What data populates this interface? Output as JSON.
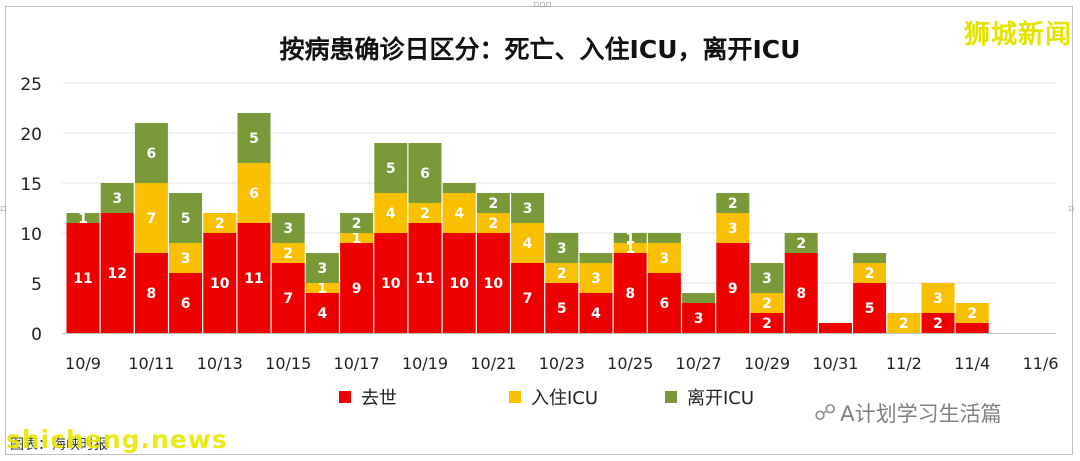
{
  "title": "按病患确诊日区分：死亡、入住ICU，离开ICU",
  "brand": "狮城新闻",
  "watermark_text": "A计划学习生活篇",
  "watermark_icon": "wechat-icon",
  "source_text": "图表：海峡时报",
  "site_text": "shicheng.news",
  "colors": {
    "death": "#ee0000",
    "icu_in": "#f8c000",
    "icu_out": "#7a9a3a",
    "grid": "#e6e6e6"
  },
  "legend": [
    {
      "label": "去世",
      "color": "#ee0000"
    },
    {
      "label": "入住ICU",
      "color": "#f8c000"
    },
    {
      "label": "离开ICU",
      "color": "#7a9a3a"
    }
  ],
  "chart_data": {
    "type": "bar",
    "stacked": true,
    "title": "按病患确诊日区分：死亡、入住ICU，离开ICU",
    "categories": [
      "10/9",
      "10/10",
      "10/11",
      "10/12",
      "10/13",
      "10/14",
      "10/15",
      "10/16",
      "10/17",
      "10/18",
      "10/19",
      "10/20",
      "10/21",
      "10/22",
      "10/23",
      "10/24",
      "10/25",
      "10/26",
      "10/27",
      "10/28",
      "10/29",
      "10/30",
      "10/31",
      "11/1",
      "11/2",
      "11/3",
      "11/4"
    ],
    "x_tick_labels": [
      "10/9",
      "10/11",
      "10/13",
      "10/15",
      "10/17",
      "10/19",
      "10/21",
      "10/23",
      "10/25",
      "10/27",
      "10/29",
      "10/31",
      "11/2",
      "11/4",
      "11/6"
    ],
    "series": [
      {
        "name": "去世",
        "color": "#ee0000",
        "values": [
          11,
          12,
          8,
          6,
          10,
          11,
          7,
          4,
          9,
          10,
          11,
          10,
          10,
          7,
          5,
          4,
          8,
          6,
          3,
          9,
          2,
          8,
          1,
          5,
          0,
          2,
          1
        ]
      },
      {
        "name": "入住ICU",
        "color": "#f8c000",
        "values": [
          0,
          0,
          7,
          3,
          2,
          6,
          2,
          1,
          1,
          4,
          2,
          4,
          2,
          4,
          2,
          3,
          1,
          3,
          0,
          3,
          2,
          0,
          0,
          2,
          2,
          3,
          2
        ]
      },
      {
        "name": "离开ICU",
        "color": "#7a9a3a",
        "values": [
          1,
          3,
          6,
          5,
          0,
          5,
          3,
          3,
          2,
          5,
          6,
          1,
          2,
          3,
          3,
          1,
          1,
          1,
          1,
          2,
          3,
          2,
          0,
          1,
          0,
          0,
          0
        ]
      }
    ],
    "data_labels": [
      [
        "11",
        "12",
        "8",
        "6",
        "10",
        "11",
        "7",
        "4",
        "9",
        "10",
        "11",
        "10",
        "10",
        "7",
        "5",
        "4",
        "8",
        "6",
        "3",
        "9",
        "2",
        "8",
        "",
        "5",
        "",
        "2",
        ""
      ],
      [
        "",
        "",
        "7",
        "3",
        "2",
        "6",
        "2",
        "1",
        "1",
        "4",
        "2",
        "4",
        "2",
        "4",
        "2",
        "3",
        "1",
        "3",
        "",
        "3",
        "2",
        "",
        "",
        "2",
        "2",
        "3",
        "2"
      ],
      [
        "1",
        "3",
        "6",
        "5",
        "",
        "5",
        "3",
        "3",
        "2",
        "5",
        "6",
        "",
        "2",
        "3",
        "3",
        "",
        "1",
        "",
        "",
        "2",
        "3",
        "2",
        "",
        "",
        "",
        "",
        ""
      ]
    ],
    "y_ticks": [
      0,
      5,
      10,
      15,
      20,
      25
    ],
    "ylim": [
      0,
      25
    ],
    "grid": true,
    "legend_position": "bottom"
  }
}
